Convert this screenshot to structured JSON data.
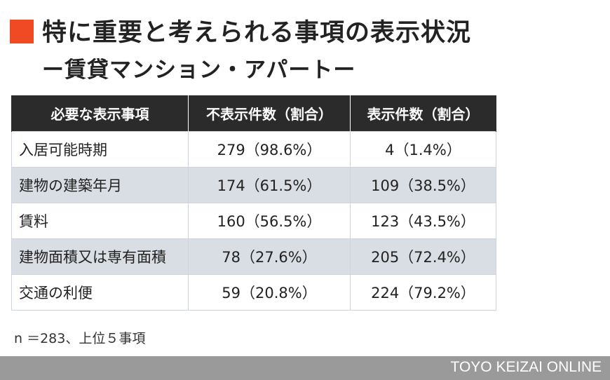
{
  "title": "特に重要と考えられる事項の表示状況",
  "subtitle": "ー賃貸マンション・アパートー",
  "accent_color": "#ef4a23",
  "table": {
    "headers": [
      "必要な表示事項",
      "不表示件数（割合）",
      "表示件数（割合）"
    ],
    "rows": [
      {
        "item": "入居可能時期",
        "not_shown": "279（98.6%）",
        "shown": "4（1.4%）"
      },
      {
        "item": "建物の建築年月",
        "not_shown": "174（61.5%）",
        "shown": "109（38.5%）"
      },
      {
        "item": "賃料",
        "not_shown": "160（56.5%）",
        "shown": "123（43.5%）"
      },
      {
        "item": "建物面積又は専有面積",
        "not_shown": "78（27.6%）",
        "shown": "205（72.4%）"
      },
      {
        "item": "交通の利便",
        "not_shown": "59（20.8%）",
        "shown": "224（79.2%）"
      }
    ]
  },
  "note": "n ＝283、上位５事項",
  "footer": {
    "brand": "TOYO KEIZAI ONLINE"
  }
}
